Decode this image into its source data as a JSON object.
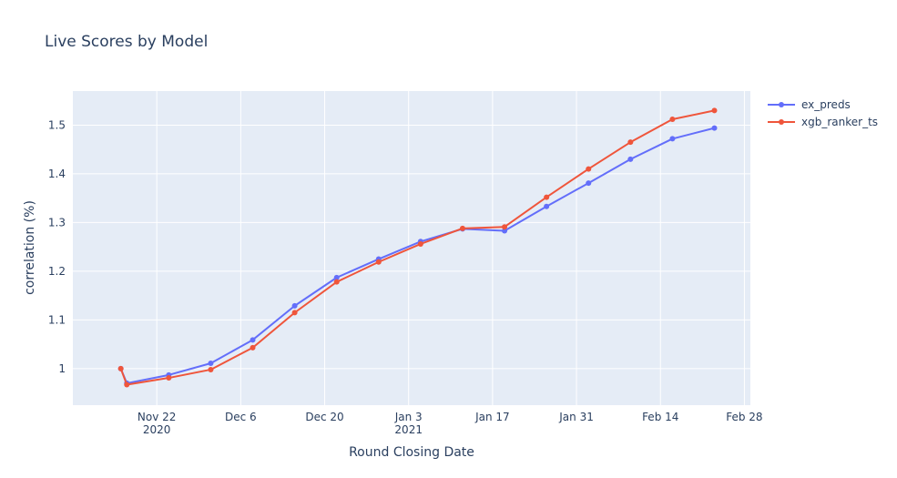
{
  "chart_data": {
    "type": "line",
    "title": "Live Scores by Model",
    "xlabel": "Round Closing Date",
    "ylabel": "correlation (%)",
    "xlim": [
      "2020-11-08",
      "2021-03-01"
    ],
    "ylim": [
      0.925,
      1.57
    ],
    "grid": true,
    "legend_position": "top-right",
    "x_ticks": [
      {
        "date": "2020-11-22",
        "label": "Nov 22",
        "sublabel": "2020"
      },
      {
        "date": "2020-12-06",
        "label": "Dec 6",
        "sublabel": ""
      },
      {
        "date": "2020-12-20",
        "label": "Dec 20",
        "sublabel": ""
      },
      {
        "date": "2021-01-03",
        "label": "Jan 3",
        "sublabel": "2021"
      },
      {
        "date": "2021-01-17",
        "label": "Jan 17",
        "sublabel": ""
      },
      {
        "date": "2021-01-31",
        "label": "Jan 31",
        "sublabel": ""
      },
      {
        "date": "2021-02-14",
        "label": "Feb 14",
        "sublabel": ""
      },
      {
        "date": "2021-02-28",
        "label": "Feb 28",
        "sublabel": ""
      }
    ],
    "y_ticks": [
      {
        "value": 1.0,
        "label": "1"
      },
      {
        "value": 1.1,
        "label": "1.1"
      },
      {
        "value": 1.2,
        "label": "1.2"
      },
      {
        "value": 1.3,
        "label": "1.3"
      },
      {
        "value": 1.4,
        "label": "1.4"
      },
      {
        "value": 1.5,
        "label": "1.5"
      }
    ],
    "x": [
      "2020-11-16",
      "2020-11-17",
      "2020-11-24",
      "2020-12-01",
      "2020-12-08",
      "2020-12-15",
      "2020-12-22",
      "2020-12-29",
      "2021-01-05",
      "2021-01-12",
      "2021-01-19",
      "2021-01-26",
      "2021-02-02",
      "2021-02-09",
      "2021-02-16",
      "2021-02-23"
    ],
    "series": [
      {
        "name": "ex_preds",
        "color": "#636efa",
        "values": [
          1.0,
          0.97,
          0.987,
          1.011,
          1.059,
          1.129,
          1.187,
          1.225,
          1.261,
          1.287,
          1.283,
          1.333,
          1.381,
          1.43,
          1.472,
          1.494
        ]
      },
      {
        "name": "xgb_ranker_ts",
        "color": "#ef553b",
        "values": [
          1.0,
          0.967,
          0.981,
          0.998,
          1.043,
          1.115,
          1.178,
          1.219,
          1.256,
          1.288,
          1.291,
          1.352,
          1.41,
          1.465,
          1.512,
          1.53
        ]
      }
    ]
  }
}
